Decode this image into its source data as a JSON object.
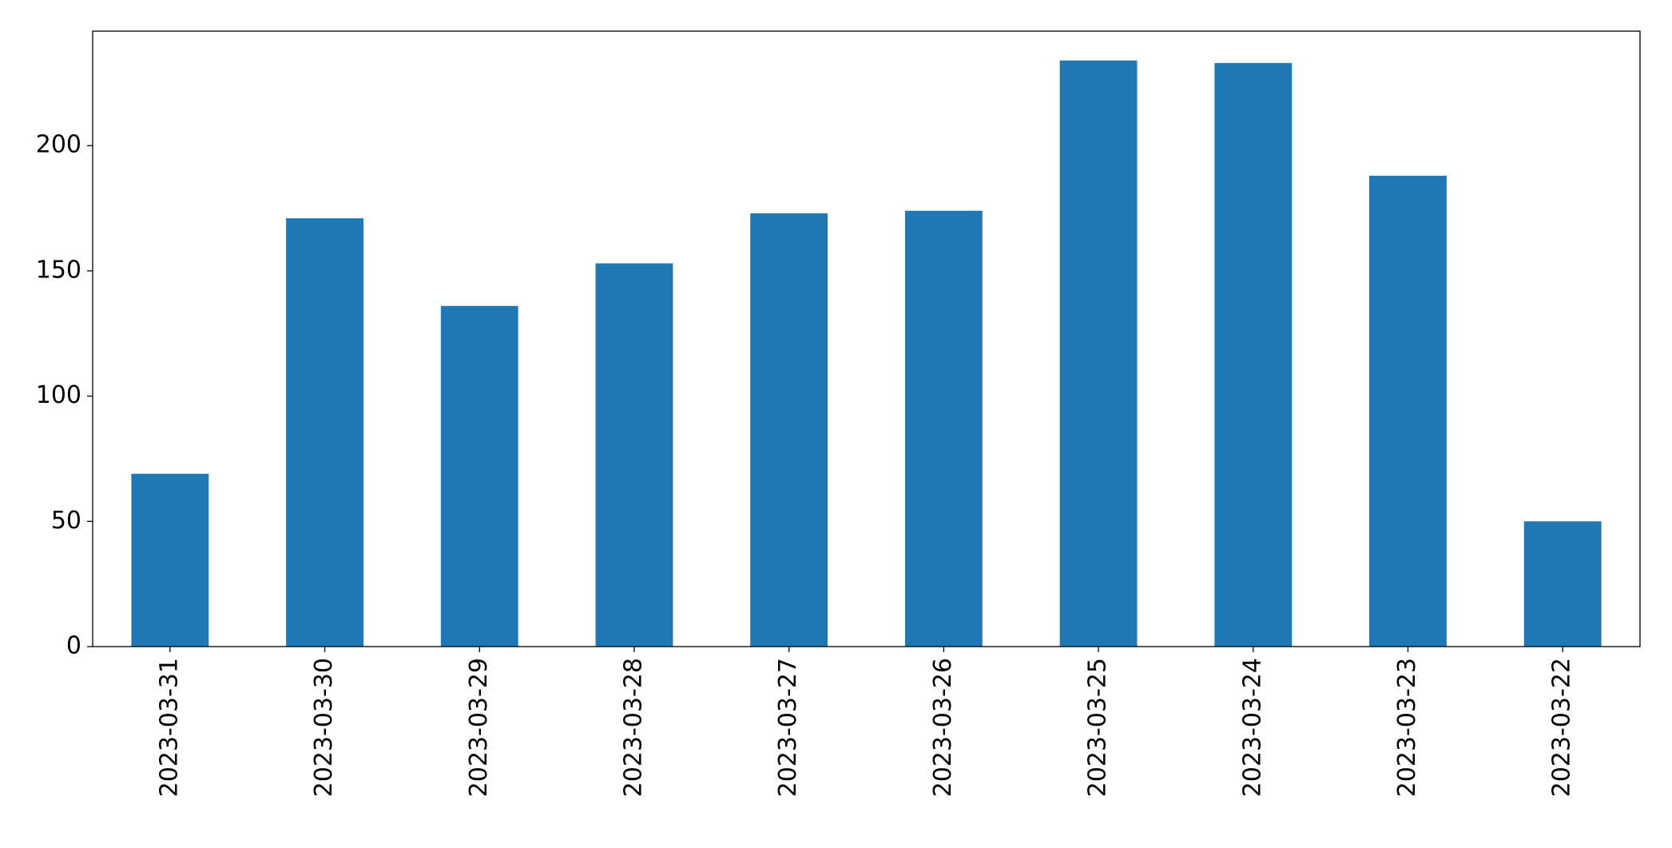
{
  "chart_data": {
    "type": "bar",
    "categories": [
      "2023-03-31",
      "2023-03-30",
      "2023-03-29",
      "2023-03-28",
      "2023-03-27",
      "2023-03-26",
      "2023-03-25",
      "2023-03-24",
      "2023-03-23",
      "2023-03-22"
    ],
    "values": [
      69,
      171,
      136,
      153,
      173,
      174,
      234,
      233,
      188,
      50
    ],
    "color": "#1f77b4",
    "ylim": [
      0,
      245.7
    ],
    "yticks": [
      0,
      50,
      100,
      150,
      200
    ],
    "grid": false
  }
}
